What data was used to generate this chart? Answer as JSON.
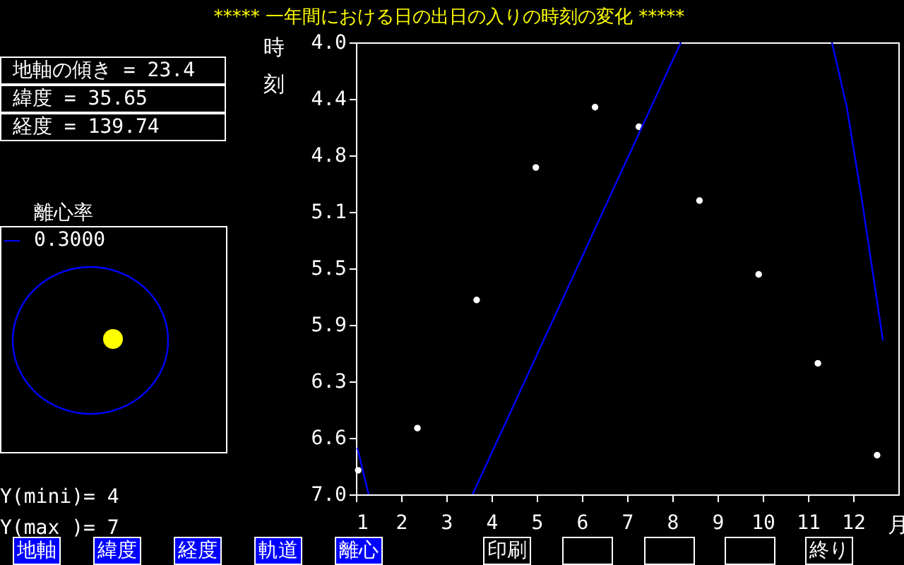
{
  "chart_data": {
    "type": "scatter",
    "title": "***** 一年間における日の出日の入りの時刻の変化 *****",
    "xlabel": "月",
    "ylabel": "時刻",
    "xlim": [
      1,
      13
    ],
    "xticks": [
      1,
      2,
      3,
      4,
      5,
      6,
      7,
      8,
      9,
      10,
      11,
      12
    ],
    "ylim": [
      7.0,
      4.0
    ],
    "yticks": [
      {
        "value": 4,
        "label": "4.0"
      },
      {
        "value": 4.375,
        "label": "4.4"
      },
      {
        "value": 4.75,
        "label": "4.8"
      },
      {
        "value": 5.125,
        "label": "5.1"
      },
      {
        "value": 5.5,
        "label": "5.5"
      },
      {
        "value": 5.875,
        "label": "5.9"
      },
      {
        "value": 6.25,
        "label": "6.3"
      },
      {
        "value": 6.625,
        "label": "6.6"
      },
      {
        "value": 7,
        "label": "7.0"
      }
    ],
    "grid": false,
    "series": [
      {
        "color": "#ffffff",
        "marker": "circle",
        "x": [
          1.05,
          2.36,
          3.67,
          4.98,
          6.29,
          7.26,
          8.6,
          9.91,
          11.22,
          12.53
        ],
        "values": [
          6.84,
          6.56,
          5.71,
          4.83,
          4.43,
          4.56,
          5.05,
          5.54,
          6.13,
          6.74
        ]
      },
      {
        "type": "line",
        "color": "#0000ff",
        "x": [
          1.03,
          1.28,
          2.5,
          3.58,
          8.19,
          10,
          11.53,
          11.86,
          12.17,
          12.66
        ],
        "values": [
          6.69,
          7.0,
          null,
          7.0,
          4.0,
          null,
          4.0,
          4.43,
          5.0,
          5.98
        ]
      }
    ],
    "annotations": [
      "地軸の傾き = 23.4",
      "緯度 = 35.65",
      "経度 = 139.74",
      "離心率",
      "0.3000",
      "Y(mini)= 4",
      "Y(max )= 7",
      "地軸",
      "緯度",
      "経度",
      "軌道",
      "離心",
      "印刷",
      "終り"
    ]
  }
}
